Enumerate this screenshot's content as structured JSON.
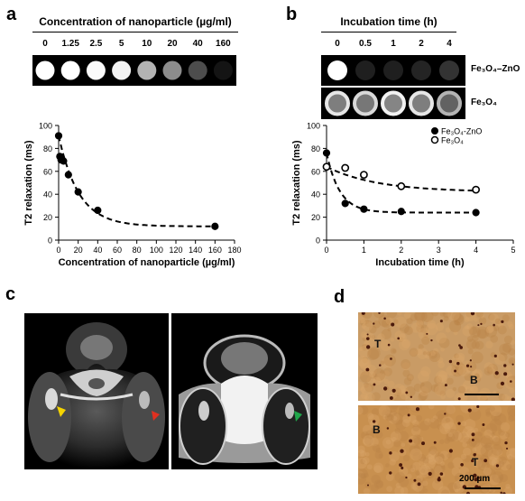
{
  "panels": {
    "a": {
      "label": "a",
      "header": "Concentration of nanoparticle (µg/ml)",
      "concentrations": [
        "0",
        "1.25",
        "2.5",
        "5",
        "10",
        "20",
        "40",
        "160"
      ],
      "wells_brightness": [
        1.0,
        1.0,
        0.98,
        0.95,
        0.7,
        0.55,
        0.3,
        0.08
      ]
    },
    "b": {
      "label": "b",
      "header": "Incubation time (h)",
      "times": [
        "0",
        "0.5",
        "1",
        "2",
        "4"
      ],
      "row1_label": "Fe₃O₄–ZnO",
      "row2_label": "Fe₃O₄",
      "row1_brightness": [
        1.0,
        0.12,
        0.12,
        0.14,
        0.2
      ],
      "row2_brightness": [
        0.9,
        0.85,
        0.95,
        0.9,
        0.7
      ]
    },
    "c": {
      "label": "c"
    },
    "d": {
      "label": "d",
      "top_labels": [
        "T",
        "B"
      ],
      "bottom_labels": [
        "B",
        "T"
      ],
      "scale_bar": "200 µm"
    }
  },
  "chart_data": [
    {
      "type": "scatter",
      "title": "",
      "xlabel": "Concentration of nanoparticle (µg/ml)",
      "ylabel": "T2 relaxation (ms)",
      "xlim": [
        0,
        180
      ],
      "ylim": [
        0,
        100
      ],
      "xticks": [
        "0",
        "20",
        "40",
        "60",
        "80",
        "100",
        "120",
        "140",
        "160",
        "180"
      ],
      "yticks": [
        "0",
        "20",
        "40",
        "60",
        "80",
        "100"
      ],
      "series": [
        {
          "x": [
            0,
            1.25,
            2.5,
            5,
            10,
            20,
            40,
            160
          ],
          "y": [
            91,
            73,
            70,
            69,
            57,
            42,
            26,
            12
          ]
        }
      ],
      "fit": "dashed exponential decay"
    },
    {
      "type": "scatter",
      "title": "",
      "xlabel": "Incubation time (h)",
      "ylabel": "T2 relaxation (ms)",
      "xlim": [
        0,
        5
      ],
      "ylim": [
        0,
        100
      ],
      "xticks": [
        "0",
        "1",
        "2",
        "3",
        "4",
        "5"
      ],
      "yticks": [
        "0",
        "20",
        "40",
        "60",
        "80",
        "100"
      ],
      "legend": "top-right",
      "series": [
        {
          "name": "Fe₃O₄-ZnO",
          "marker": "filled",
          "x": [
            0,
            0.5,
            1,
            2,
            4
          ],
          "y": [
            76,
            32,
            27,
            25,
            24
          ]
        },
        {
          "name": "Fe₃O₄",
          "marker": "open",
          "x": [
            0,
            0.5,
            1,
            2,
            4
          ],
          "y": [
            64,
            63,
            57,
            47,
            44
          ]
        }
      ],
      "fit": "dashed exponential decay"
    }
  ]
}
